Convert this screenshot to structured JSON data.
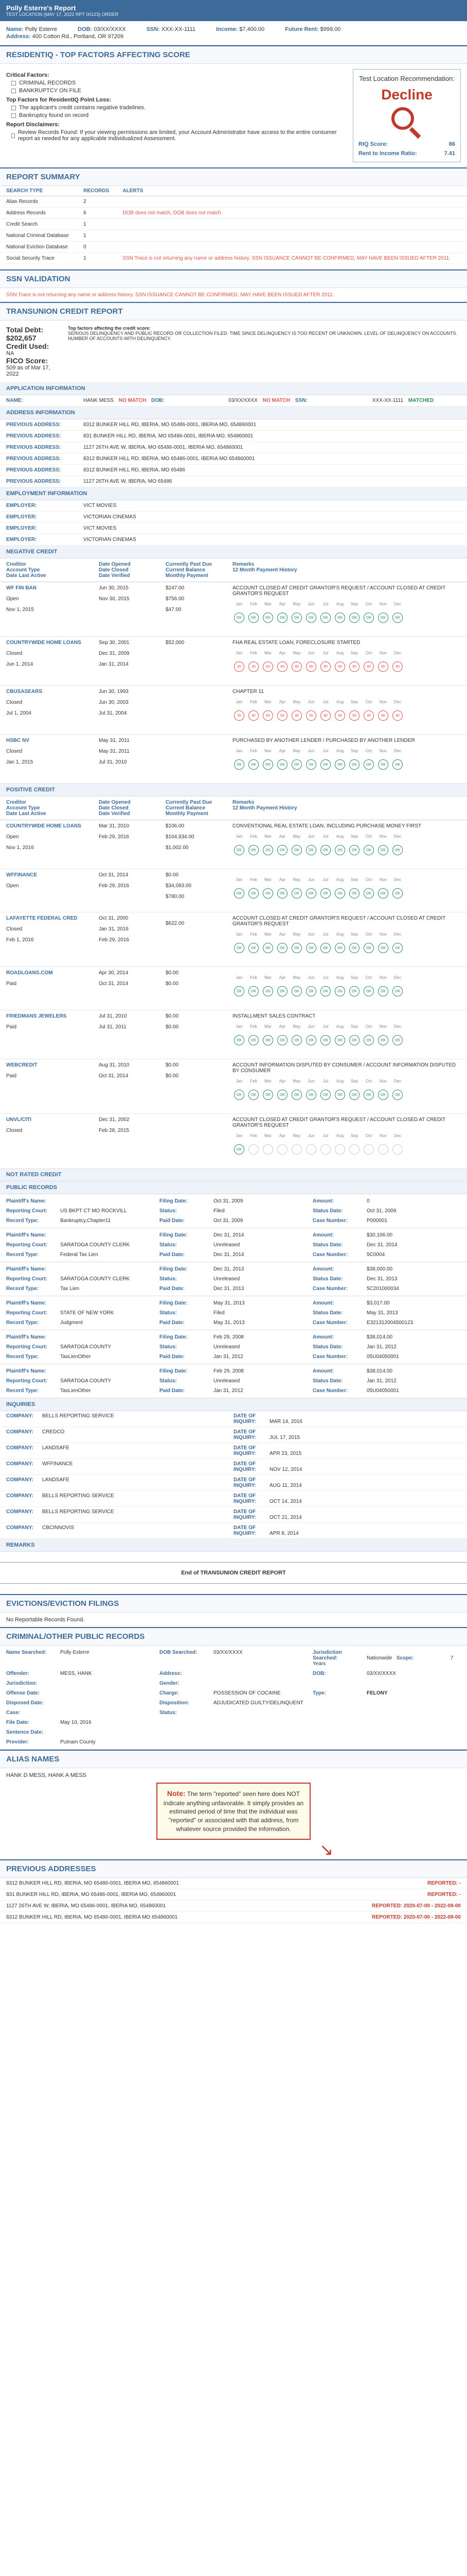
{
  "header": {
    "title": "Polly Esterre's Report",
    "subtitle": "TEST LOCATION (MAY 17, 2022 RPT 00123) ORDER"
  },
  "applicant": {
    "name_label": "Name:",
    "name": "Polly Esterre",
    "dob_label": "DOB:",
    "dob": "03/XX/XXXX",
    "ssn_label": "SSN:",
    "ssn": "XXX-XX-1111",
    "income_label": "Income:",
    "income": "$7,400.00",
    "rent_label": "Future Rent:",
    "rent": "$999.00",
    "addr_label": "Address:",
    "addr": "400 Cotton Rd., Portland, OR 97209"
  },
  "factors": {
    "title": "RESIDENTIQ - TOP FACTORS AFFECTING SCORE",
    "critical_label": "Critical Factors:",
    "critical": [
      "CRIMINAL RECORDS",
      "BANKRUPTCY ON FILE"
    ],
    "top_label": "Top Factors for ResidentIQ Point Loss:",
    "top": [
      "The applicant's credit contains negative tradelines.",
      "Bankruptcy found on record"
    ],
    "disclaimer_label": "Report Disclaimers:",
    "disclaimer": "Review Records Found: If your viewing permissions are limited, your Account Administrator have access to the entire consumer report as needed for any applicable Individualized Assessment."
  },
  "recommendation": {
    "label": "Test Location Recommendation:",
    "decision": "Decline",
    "riq_label": "RIQ Score:",
    "riq": "86",
    "rti_label": "Rent to Income Ratio:",
    "rti": "7.41"
  },
  "summary": {
    "title": "REPORT SUMMARY",
    "cols": [
      "SEARCH TYPE",
      "RECORDS",
      "ALERTS"
    ],
    "rows": [
      {
        "type": "Alias Records",
        "records": "2",
        "alert": ""
      },
      {
        "type": "Address Records",
        "records": "6",
        "alert": "DOB does not match, DOB does not match"
      },
      {
        "type": "Credit Search",
        "records": "1",
        "alert": ""
      },
      {
        "type": "National Criminal Database",
        "records": "1",
        "alert": ""
      },
      {
        "type": "National Eviction Database",
        "records": "0",
        "alert": ""
      },
      {
        "type": "Social Security Trace",
        "records": "1",
        "alert": "SSN Trace is not returning any name or address history. SSN ISSUANCE CANNOT BE CONFIRMED, MAY HAVE BEEN ISSUED AFTER 2011."
      }
    ]
  },
  "ssn": {
    "title": "SSN VALIDATION",
    "text": "SSN Trace is not returning any name or address history. SSN ISSUANCE CANNOT BE CONFIRMED, MAY HAVE BEEN ISSUED AFTER 2011."
  },
  "credit": {
    "title": "TRANSUNION CREDIT REPORT",
    "total_debt_label": "Total Debt:",
    "total_debt": "$202,657",
    "credit_used_label": "Credit Used:",
    "credit_used": "NA",
    "fico_label": "FICO Score:",
    "fico": "509 as of Mar 17, 2022",
    "factors_label": "Top factors affecting the credit score:",
    "factors": "SERIOUS DELINQUENCY AND PUBLIC RECORD OR COLLECTION FILED. TIME SINCE DELINQUENCY IS TOO RECENT OR UNKNOWN. LEVEL OF DELINQUENCY ON ACCOUNTS. NUMBER OF ACCOUNTS WITH DELINQUENCY."
  },
  "app_info": {
    "title": "APPLICATION INFORMATION",
    "name_label": "NAME:",
    "name": "HANK MESS",
    "name_status": "NO MATCH",
    "dob_label": "DOB:",
    "dob": "03/XX/XXXX",
    "dob_status": "NO MATCH",
    "ssn_label": "SSN:",
    "ssn": "XXX-XX-1111",
    "ssn_status": "MATCHED"
  },
  "address_info": {
    "title": "ADDRESS INFORMATION",
    "label": "PREVIOUS ADDRESS:",
    "items": [
      "8312 BUNKER HILL RD, IBERIA, MO 65486-0001, IBERIA MO, 654860001",
      "831 BUNKER HILL RD, IBERIA, MO 65486-0001, IBERIA MO, 654860001",
      "1127 26TH AVE W, IBERIA, MO 65486-0001, IBERIA MO, 654860001",
      "8312 BUNKER HILL RD, IBERIA, MO 65486-0001, IBERIA MO 654860001",
      "8312 BUNKER HILL RD, IBERIA, MO 65486",
      "1127 26TH AVE W, IBERIA, MO 65486"
    ]
  },
  "employment": {
    "title": "EMPLOYMENT INFORMATION",
    "label": "EMPLOYER:",
    "items": [
      "VICT MOVIES",
      "VICTORIAN CINEMAS",
      "VICT MOVIES",
      "VICTORIAN CINEMAS"
    ]
  },
  "tradeline_cols": {
    "c1": [
      "Creditor",
      "Account Type",
      "Date Last Active"
    ],
    "c2": [
      "Date Opened",
      "Date Closed",
      "Date Verified"
    ],
    "c3": [
      "Currently Past Due",
      "Current Balance",
      "Monthly Payment"
    ],
    "c4": [
      "Remarks",
      "12 Month Payment History"
    ]
  },
  "months": [
    "Jan",
    "Feb",
    "Mar",
    "Apr",
    "May",
    "Jun",
    "Jul",
    "Aug",
    "Sep",
    "Oct",
    "Nov",
    "Dec"
  ],
  "negative": {
    "title": "NEGATIVE CREDIT",
    "items": [
      {
        "creditor": "WF FIN BAN",
        "type": "Open",
        "last": "Nov 1, 2015",
        "opened": "Jun 30, 2015",
        "closed": "",
        "verified": "Nov 30, 2015",
        "due": "$247.00",
        "bal": "$756.00",
        "pay": "$47.00",
        "remarks": "ACCOUNT CLOSED AT CREDIT GRANTOR'S REQUEST / ACCOUNT CLOSED AT CREDIT GRANTOR'S REQUEST",
        "hist": [
          "OK",
          "OK",
          "OK",
          "OK",
          "OK",
          "OK",
          "OK",
          "OK",
          "OK",
          "OK",
          "OK",
          "OK"
        ]
      },
      {
        "creditor": "COUNTRYWIDE HOME LOANS",
        "type": "Closed",
        "last": "Jun 1, 2014",
        "opened": "Sep 30, 2001",
        "closed": "Dec 31, 2009",
        "verified": "Jan 31, 2014",
        "due": "$52,000",
        "bal": "",
        "pay": "",
        "remarks": "FHA REAL ESTATE LOAN; FORECLOSURE STARTED",
        "hist": [
          "30",
          "30",
          "60",
          "60",
          "90",
          "90",
          "90",
          "90",
          "90",
          "90",
          "90",
          "90"
        ]
      },
      {
        "creditor": "CBUSASEARS",
        "type": "Closed",
        "last": "Jul 1, 2004",
        "opened": "Jun 30, 1993",
        "closed": "Jun 30, 2003",
        "verified": "Jul 31, 2004",
        "due": "",
        "bal": "",
        "pay": "",
        "remarks": "CHAPTER 11",
        "hist": [
          "30",
          "30",
          "60",
          "60",
          "90",
          "90",
          "90",
          "90",
          "90",
          "90",
          "90",
          "90"
        ]
      },
      {
        "creditor": "HSBC NV",
        "type": "Closed",
        "last": "Jan 1, 2015",
        "opened": "May 31, 2011",
        "closed": "May 31, 2011",
        "verified": "Jul 31, 2010",
        "due": "",
        "bal": "",
        "pay": "",
        "remarks": "PURCHASED BY ANOTHER LENDER / PURCHASED BY ANOTHER LENDER",
        "hist": [
          "OK",
          "OK",
          "OK",
          "OK",
          "OK",
          "OK",
          "OK",
          "OK",
          "OK",
          "OK",
          "OK",
          "OK"
        ]
      }
    ]
  },
  "positive": {
    "title": "POSITIVE CREDIT",
    "items": [
      {
        "creditor": "COUNTRYWIDE HOME LOANS",
        "type": "Open",
        "last": "Nov 1, 2016",
        "opened": "Mar 31, 2010",
        "closed": "",
        "verified": "Feb 29, 2016",
        "due": "$106.00",
        "bal": "$104,934.00",
        "pay": "$1,002.00",
        "remarks": "CONVENTIONAL REAL ESTATE LOAN, INCLUDING PURCHASE MONEY FIRST",
        "hist": [
          "OK",
          "OK",
          "OK",
          "OK",
          "OK",
          "OK",
          "OK",
          "OK",
          "OK",
          "OK",
          "OK",
          "OK"
        ]
      },
      {
        "creditor": "WFFINANCE",
        "type": "Open",
        "last": "",
        "opened": "Oct 31, 2014",
        "closed": "",
        "verified": "Feb 29, 2016",
        "due": "$0.00",
        "bal": "$34,093.00",
        "pay": "$780.00",
        "remarks": "",
        "hist": [
          "OK",
          "OK",
          "OK",
          "OK",
          "OK",
          "OK",
          "OK",
          "OK",
          "OK",
          "OK",
          "OK",
          "OK"
        ]
      },
      {
        "creditor": "LAFAYETTE FEDERAL CRED",
        "type": "Closed",
        "last": "Feb 1, 2016",
        "opened": "Oct 31, 2000",
        "closed": "Jan 31, 2016",
        "verified": "Feb 29, 2016",
        "due": "",
        "bal": "$622.00",
        "pay": "",
        "remarks": "ACCOUNT CLOSED AT CREDIT GRANTOR'S REQUEST / ACCOUNT CLOSED AT CREDIT GRANTOR'S REQUEST",
        "hist": [
          "OK",
          "OK",
          "OK",
          "OK",
          "OK",
          "OK",
          "OK",
          "OK",
          "OK",
          "OK",
          "OK",
          "OK"
        ]
      },
      {
        "creditor": "ROADLOANS.COM",
        "type": "Paid",
        "last": "",
        "opened": "Apr 30, 2014",
        "closed": "Oct 31, 2014",
        "verified": "",
        "due": "$0.00",
        "bal": "$0.00",
        "pay": "",
        "remarks": "",
        "hist": [
          "OK",
          "OK",
          "OK",
          "OK",
          "OK",
          "OK",
          "OK",
          "OK",
          "OK",
          "OK",
          "OK",
          "OK"
        ]
      },
      {
        "creditor": "FRIEDMANS JEWELERS",
        "type": "Paid",
        "last": "",
        "opened": "Jul 31, 2010",
        "closed": "Jul 31, 2011",
        "verified": "",
        "due": "$0.00",
        "bal": "$0.00",
        "pay": "",
        "remarks": "INSTALLMENT SALES CONTRACT",
        "hist": [
          "OK",
          "OK",
          "OK",
          "OK",
          "OK",
          "OK",
          "OK",
          "OK",
          "OK",
          "OK",
          "OK",
          "OK"
        ]
      },
      {
        "creditor": "WEBCREDIT",
        "type": "Paid",
        "last": "",
        "opened": "Aug 31, 2010",
        "closed": "Oct 31, 2014",
        "verified": "",
        "due": "$0.00",
        "bal": "$0.00",
        "pay": "",
        "remarks": "ACCOUNT INFORMATION DISPUTED BY CONSUMER / ACCOUNT INFORMATION DISPUTED BY CONSUMER",
        "hist": [
          "OK",
          "OK",
          "OK",
          "OK",
          "OK",
          "OK",
          "OK",
          "OK",
          "OK",
          "OK",
          "OK",
          "OK"
        ]
      },
      {
        "creditor": "UNVL/CITI",
        "type": "Closed",
        "last": "",
        "opened": "Dec 31, 2002",
        "closed": "",
        "verified": "Feb 28, 2015",
        "due": "",
        "bal": "",
        "pay": "",
        "remarks": "ACCOUNT CLOSED AT CREDIT GRANTOR'S REQUEST / ACCOUNT CLOSED AT CREDIT GRANTOR'S REQUEST",
        "hist": [
          "OK",
          "",
          "",
          "",
          "",
          "",
          "",
          "",
          "",
          "",
          "",
          ""
        ]
      }
    ]
  },
  "not_rated": {
    "title": "NOT RATED CREDIT"
  },
  "public_records": {
    "title": "PUBLIC RECORDS",
    "items": [
      {
        "plaintiff": "",
        "source": "US BKPT CT MO ROCKVILL",
        "record": "Bankruptcy,Chapter11",
        "filing": "Oct 31, 2009",
        "status": "Filed",
        "paid": "Oct 31, 2009",
        "amount": "0",
        "status_date": "Oct 31, 2009",
        "case": "P000001"
      },
      {
        "plaintiff": "",
        "source": "SARATOGA COUNTY CLERK",
        "record": "Federal Tax Lien",
        "filing": "Dec 31, 2014",
        "status": "Unreleased",
        "paid": "Dec 31, 2014",
        "amount": "$30,106.00",
        "status_date": "Dec 31, 2014",
        "case": "5C0004"
      },
      {
        "plaintiff": "",
        "source": "SARATOGA COUNTY CLERK",
        "record": "Tax Lien",
        "filing": "Dec 31, 2013",
        "status": "Unreleased",
        "paid": "Dec 31, 2013",
        "amount": "$38,000.00",
        "status_date": "Dec 31, 2013",
        "case": "5C201000034"
      },
      {
        "plaintiff": "",
        "source": "STATE OF NEW YORK",
        "record": "Judgment",
        "filing": "May 31, 2013",
        "status": "Filed",
        "paid": "May 31, 2013",
        "amount": "$3,017.00",
        "status_date": "May 31, 2013",
        "case": "E321312004500123"
      },
      {
        "plaintiff": "",
        "source": "SARATOGA COUNTY",
        "record": "TaxLienOther",
        "filing": "Feb 29, 2008",
        "status": "Unreleased",
        "paid": "Jan 31, 2012",
        "amount": "$38,014.00",
        "status_date": "Jan 31, 2012",
        "case": "05U04050001"
      },
      {
        "plaintiff": "",
        "source": "SARATOGA COUNTY",
        "record": "TaxLienOther",
        "filing": "Feb 29, 2008",
        "status": "Unreleased",
        "paid": "Jan 31, 2012",
        "amount": "$38,014.00",
        "status_date": "Jan 31, 2012",
        "case": "05U04050001"
      }
    ],
    "labels": {
      "plaintiff": "Plaintiff's Name:",
      "source": "Reporting Court:",
      "record": "Record Type:",
      "filing": "Filing Date:",
      "status": "Status:",
      "paid": "Paid Date:",
      "amount": "Amount:",
      "status_date": "Status Date:",
      "case": "Case Number:"
    }
  },
  "inquiries": {
    "title": "INQUIRIES",
    "company_label": "COMPANY:",
    "date_label": "DATE OF INQUIRY:",
    "items": [
      {
        "company": "BELLS REPORTING SERVICE",
        "date": "MAR 14, 2016"
      },
      {
        "company": "CREDCO",
        "date": "JUL 17, 2015"
      },
      {
        "company": "LANDSAFE",
        "date": "APR 23, 2015"
      },
      {
        "company": "WFFINANCE",
        "date": "NOV 12, 2014"
      },
      {
        "company": "LANDSAFE",
        "date": "AUG 11, 2014"
      },
      {
        "company": "BELLS REPORTING SERVICE",
        "date": "OCT 14, 2014"
      },
      {
        "company": "BELLS REPORTING SERVICE",
        "date": "OCT 21, 2014"
      },
      {
        "company": "CBCINNOVIS",
        "date": "APR 8, 2014"
      }
    ]
  },
  "remarks": {
    "title": "REMARKS"
  },
  "end_text": "End of TRANSUNION CREDIT REPORT",
  "evictions": {
    "title": "EVICTIONS/EVICTION FILINGS",
    "text": "No Reportable Records Found."
  },
  "criminal": {
    "title": "CRIMINAL/OTHER PUBLIC RECORDS",
    "name_searched_label": "Name Searched:",
    "name_searched": "Polly Esterre",
    "dob_searched_label": "DOB Searched:",
    "dob_searched": "03/XX/XXXX",
    "juris_label": "Jurisdiction Searched:",
    "juris": "Nationwide",
    "scope_label": "Scope:",
    "scope": "7 Years",
    "offender_label": "Offender:",
    "offender": "MESS, HANK",
    "address_label": "Address:",
    "address": "",
    "dob_label": "DOB:",
    "dob": "03/XX/XXXX",
    "gender_label": "Gender:",
    "gender": "",
    "jurisdiction_label": "Jurisdiction:",
    "jurisdiction": "",
    "offense_label": "Offense Date:",
    "offense": "",
    "charge_label": "Charge:",
    "charge": "POSSESSION OF COCAINE",
    "type_label": "Type:",
    "type": "FELONY",
    "dispo_date_label": "Disposed Date:",
    "dispo_date": "",
    "disposition_label": "Disposition:",
    "disposition": "ADJUDICATED GUILTY/DELINQUENT",
    "case_label": "Case:",
    "case": "",
    "status_label": "Status:",
    "status": "",
    "file_label": "File Date:",
    "file": "May 10, 2016",
    "sentence_label": "Sentence Date:",
    "sentence": "",
    "provider_label": "Provider:",
    "provider": "Putnam County"
  },
  "aliases": {
    "title": "ALIAS NAMES",
    "text": "HANK D MESS, HANK A MESS"
  },
  "note": {
    "label": "Note:",
    "text": "The term \"reported\" seen here does NOT indicate anything unfavorable. It simply provides an estimated period of time that the individual was \"reported\" or associated with that address, from whatever source provided the information."
  },
  "prev_addresses": {
    "title": "PREVIOUS ADDRESSES",
    "reported_label": "REPORTED:",
    "items": [
      {
        "addr": "8312 BUNKER HILL RD, IBERIA, MO 65486-0001, IBERIA MO, 654860001",
        "reported": "-"
      },
      {
        "addr": "831 BUNKER HILL RD, IBERIA, MO 65486-0001, IBERIA MO, 654860001",
        "reported": "-"
      },
      {
        "addr": "1127 26TH AVE W, IBERIA, MO 65486-0001, IBERIA MO, 654860001",
        "reported": "2020-07-00 - 2022-08-00"
      },
      {
        "addr": "8312 BUNKER HILL RD, IBERIA, MO 65486-0001, IBERIA MO 654860001",
        "reported": "2020-07-00 - 2022-08-00"
      }
    ]
  }
}
